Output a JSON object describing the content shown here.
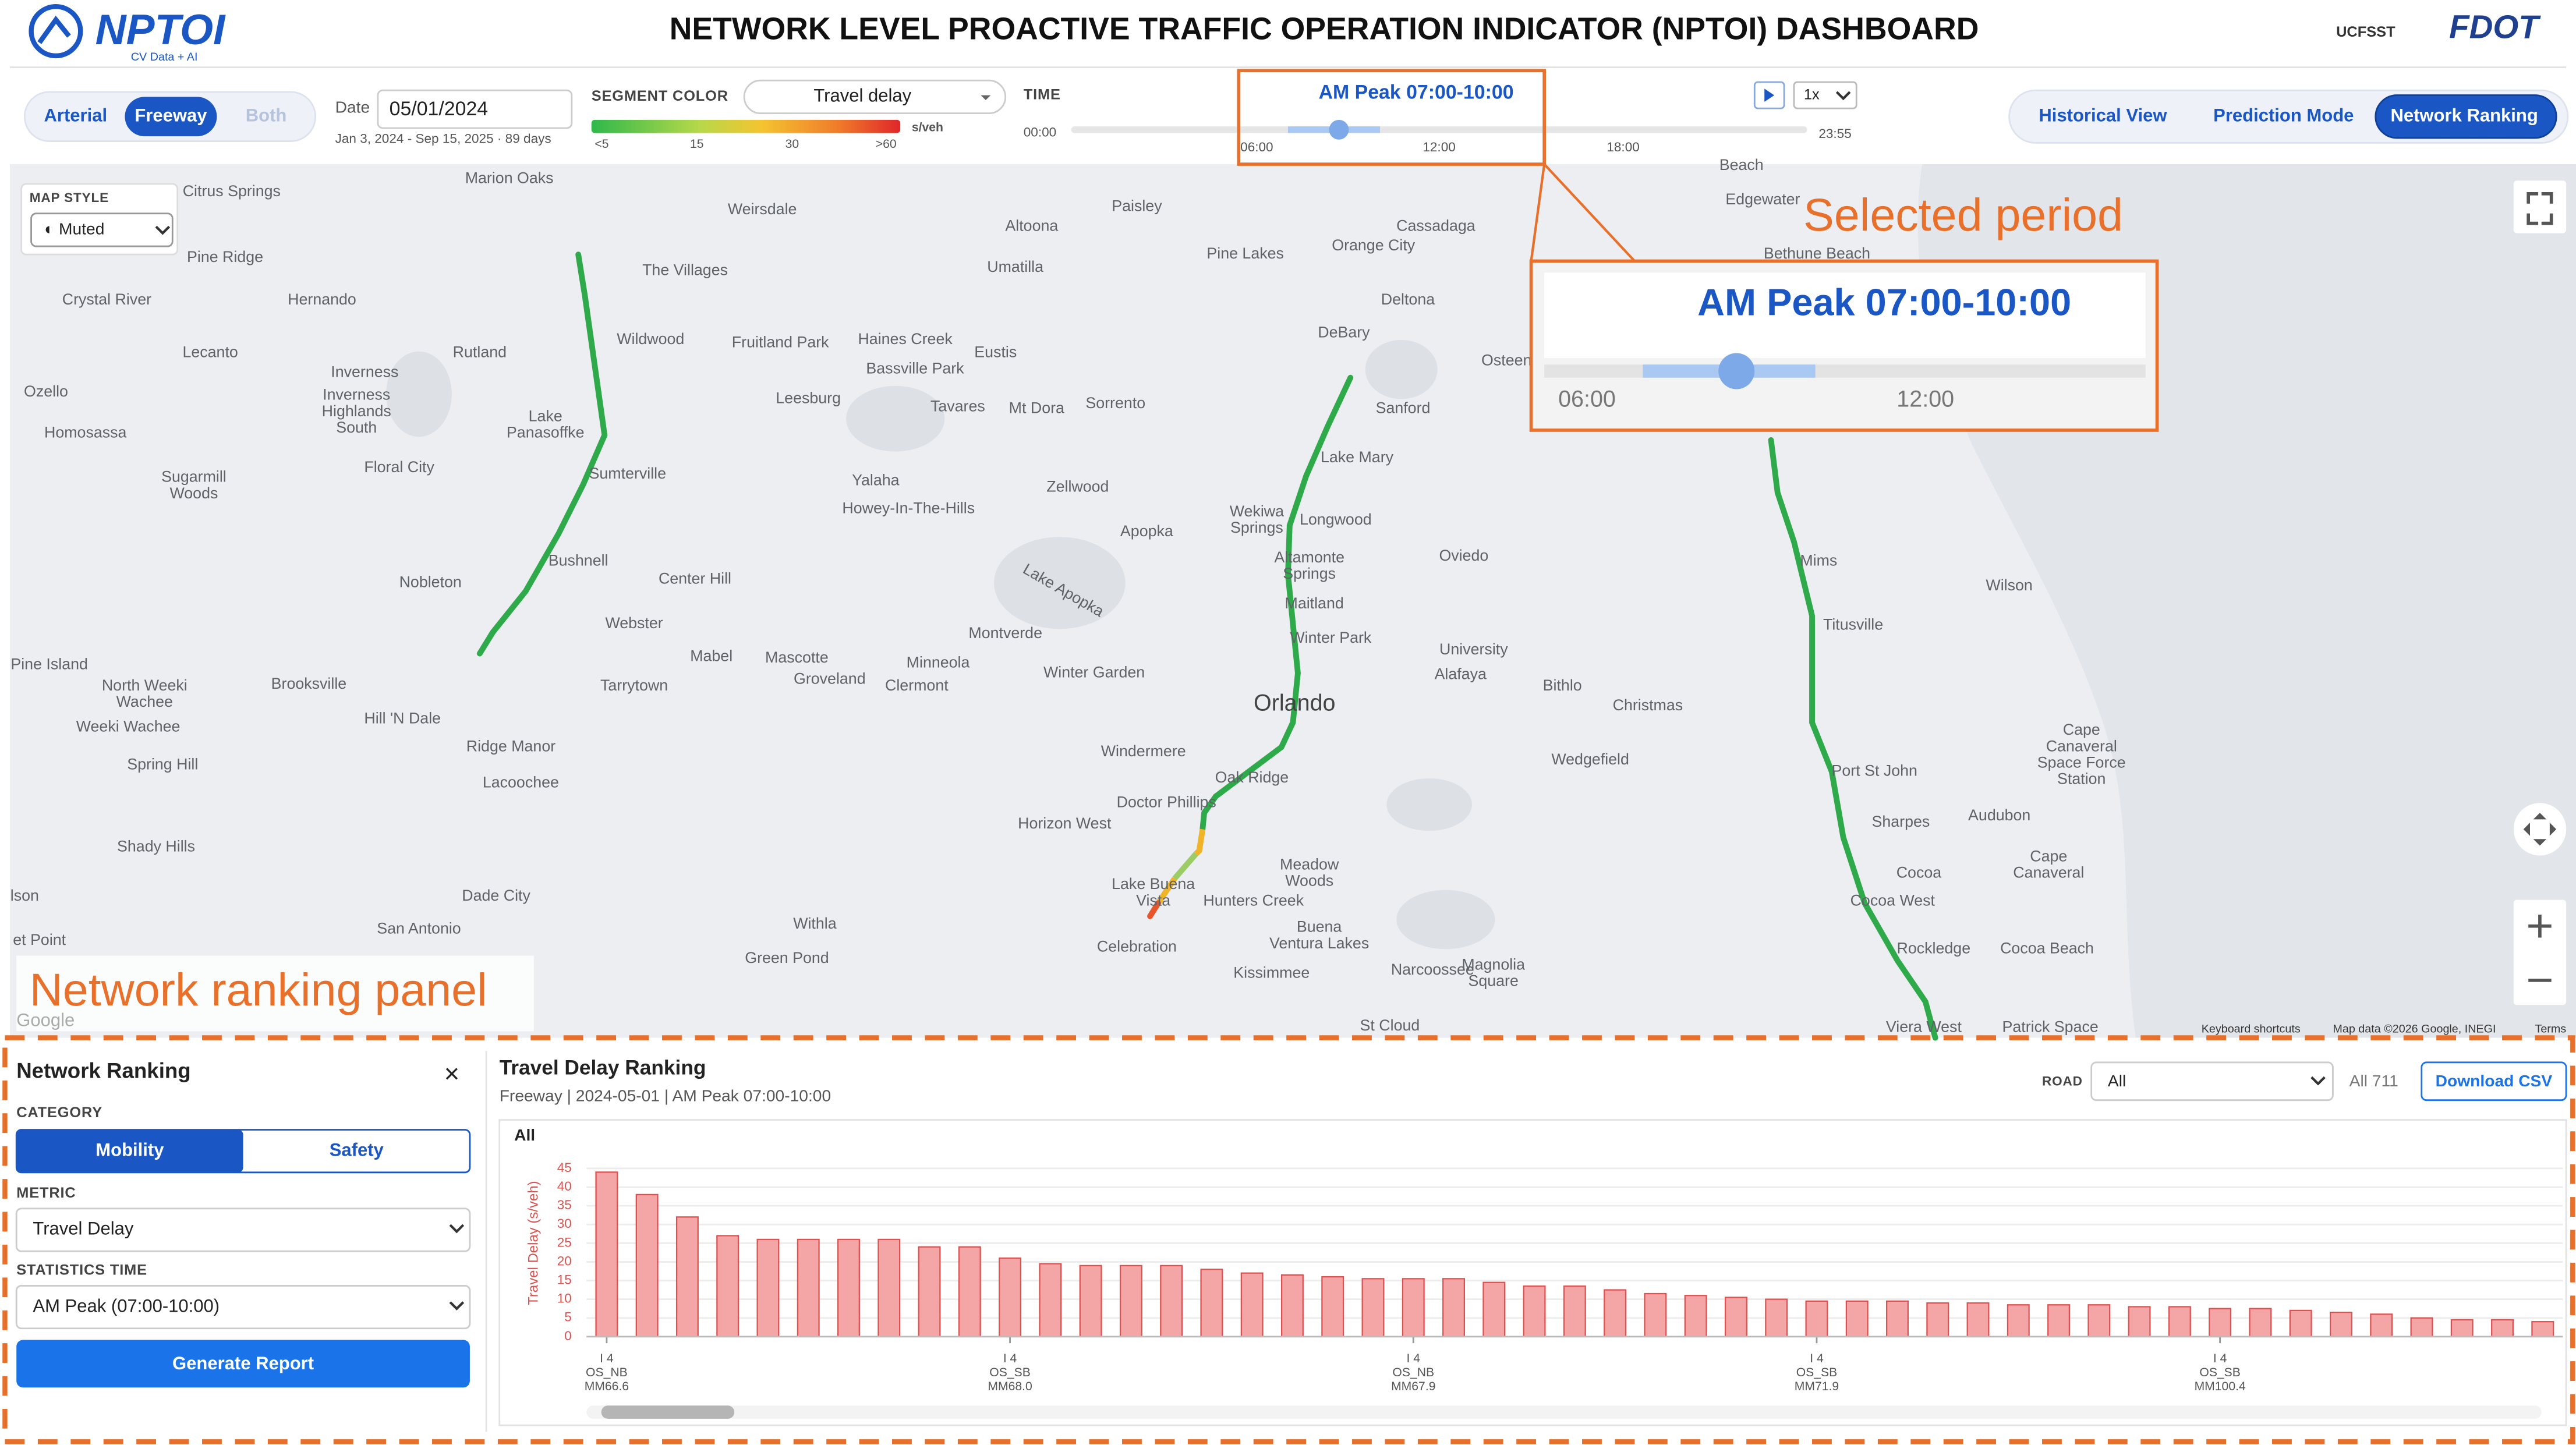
{
  "header": {
    "logo": "NPTOI",
    "logo_tagline": "CV Data + AI",
    "title": "NETWORK LEVEL PROACTIVE TRAFFIC OPERATION INDICATOR (NPTOI) DASHBOARD",
    "partner_logos": [
      "UCFSST",
      "FDOT"
    ]
  },
  "toolbar": {
    "road_types": [
      "Arterial",
      "Freeway",
      "Both"
    ],
    "date_label": "Date",
    "date": "05/01/2024",
    "date_range": "Jan 3, 2024 - Sep 15, 2025 · 89 days",
    "segment_color_label": "SEGMENT COLOR",
    "segment_color": "Travel delay",
    "color_unit": "s/veh",
    "color_scale": [
      "<5",
      "15",
      "30",
      ">60"
    ],
    "time_label": "TIME",
    "time_start": "00:00",
    "time_end": "23:55",
    "time_ticks": [
      "06:00",
      "12:00",
      "18:00"
    ],
    "selected_period": "AM Peak 07:00-10:00",
    "speed": "1x",
    "modes": [
      "Historical View",
      "Prediction Mode",
      "Network Ranking"
    ]
  },
  "map": {
    "style_label": "MAP STYLE",
    "style": "◐ Muted",
    "attribution": [
      "Google",
      "Keyboard shortcuts",
      "Map data ©2026 Google, INEGI",
      "Terms"
    ],
    "place_labels": [
      "Marion Oaks",
      "Weirsdale",
      "Paisley",
      "Citrus Springs",
      "Pine Ridge",
      "Altoona",
      "Umatilla",
      "Pine Lakes",
      "Cassadaga",
      "Orange City",
      "Edgewater",
      "Beach",
      "Bethune Beach",
      "Crystal River",
      "Hernando",
      "The Villages",
      "Deltona",
      "Wildwood",
      "Fruitland Park",
      "Haines Creek",
      "Eustis",
      "DeBary",
      "Osteen",
      "Lecanto",
      "Rutland",
      "Bassville Park",
      "Inverness",
      "Ozello",
      "Inverness\nHighlands\nSouth",
      "Leesburg",
      "Tavares",
      "Mt Dora",
      "Sorrento",
      "Sanford",
      "Lake\nPanasoffke",
      "Homosassa",
      "Lake Mary",
      "Floral City",
      "Sumterville",
      "Yalaha",
      "Zellwood",
      "Sugarmill\nWoods",
      "Howey-In-The-Hills",
      "Wekiwa\nSprings",
      "Longwood",
      "Apopka",
      "Altamonte\nSprings",
      "Oviedo",
      "Mims",
      "Bushnell",
      "Center Hill",
      "Nobleton",
      "Lake Apopka",
      "Wilson",
      "Maitland",
      "Webster",
      "Titusville",
      "Montverde",
      "Winter Park",
      "University",
      "Pine Island",
      "Mabel",
      "Mascotte",
      "Minneola",
      "Groveland",
      "Alafaya",
      "Winter Garden",
      "Clermont",
      "Brooksville",
      "Tarrytown",
      "Bithlo",
      "North Weeki\nWachee",
      "Christmas",
      "Orlando",
      "Hill 'N Dale",
      "Weeki Wachee",
      "Cape\nCanaveral\nSpace Force\nStation",
      "Ridge Manor",
      "Windermere",
      "Wedgefield",
      "Spring Hill",
      "Port St John",
      "Lacoochee",
      "Oak Ridge",
      "Doctor Phillips",
      "Audubon",
      "Horizon West",
      "Sharpes",
      "Shady Hills",
      "Meadow\nWoods",
      "Cape\nCanaveral",
      "Cocoa",
      "Lake Buena\nVista",
      "Hunters Creek",
      "Dade City",
      "Cocoa West",
      "lson",
      "Withla",
      "Buena\nVentura Lakes",
      "San Antonio",
      "Celebration",
      "Rockledge",
      "Cocoa Beach",
      "Green Pond",
      "Kissimmee",
      "Narcoossee",
      "Magnolia\nSquare",
      "et Point",
      "St Cloud",
      "Viera West",
      "Patrick Space"
    ]
  },
  "annotations": {
    "selected_period": "Selected period",
    "zoom_period": "AM Peak 07:00-10:00",
    "zoom_ticks": [
      "06:00",
      "12:00"
    ],
    "panel": "Network ranking panel"
  },
  "ranking_panel": {
    "title": "Network Ranking",
    "close": "×",
    "category_label": "CATEGORY",
    "categories": [
      "Mobility",
      "Safety"
    ],
    "metric_label": "METRIC",
    "metric": "Travel Delay",
    "time_label": "STATISTICS TIME",
    "time": "AM Peak (07:00-10:00)",
    "button": "Generate Report"
  },
  "ranking_chart": {
    "type": "bar",
    "title": "Travel Delay Ranking",
    "subtitle": "Freeway | 2024-05-01 | AM Peak 07:00-10:00",
    "road_label": "ROAD",
    "road": "All",
    "count": "All 711",
    "download": "Download CSV",
    "series_name": "All",
    "y_label": "Travel Delay (s/veh)",
    "categories": [
      "I 4\nOS_NB\nMM66.6",
      null,
      null,
      null,
      null,
      null,
      null,
      null,
      null,
      null,
      "I 4\nOS_SB\nMM68.0",
      null,
      null,
      null,
      null,
      null,
      null,
      null,
      null,
      null,
      "I 4\nOS_NB\nMM67.9",
      null,
      null,
      null,
      null,
      null,
      null,
      null,
      null,
      null,
      "I 4\nOS_SB\nMM71.9",
      null,
      null,
      null,
      null,
      null,
      null,
      null,
      null,
      null,
      "I 4\nOS_SB\nMM100.4",
      null,
      null,
      null,
      null,
      null,
      null,
      null,
      null
    ],
    "values": [
      44,
      38,
      32,
      27,
      26,
      26,
      26,
      26,
      24,
      24,
      21,
      19.5,
      19,
      19,
      19,
      18,
      17,
      16.5,
      16,
      15.5,
      15.5,
      15.5,
      14.5,
      13.5,
      13.5,
      12.5,
      11.5,
      11,
      10.5,
      10,
      9.5,
      9.5,
      9.5,
      9,
      9,
      8.5,
      8.5,
      8.5,
      8,
      8,
      7.5,
      7.5,
      7,
      6.5,
      6,
      5,
      4.5,
      4.5,
      4
    ],
    "color": "#f4a6a6",
    "ylim": [
      0,
      47
    ],
    "yticks": [
      0,
      5,
      10,
      15,
      20,
      25,
      30,
      35,
      40,
      45
    ],
    "grid": true
  }
}
